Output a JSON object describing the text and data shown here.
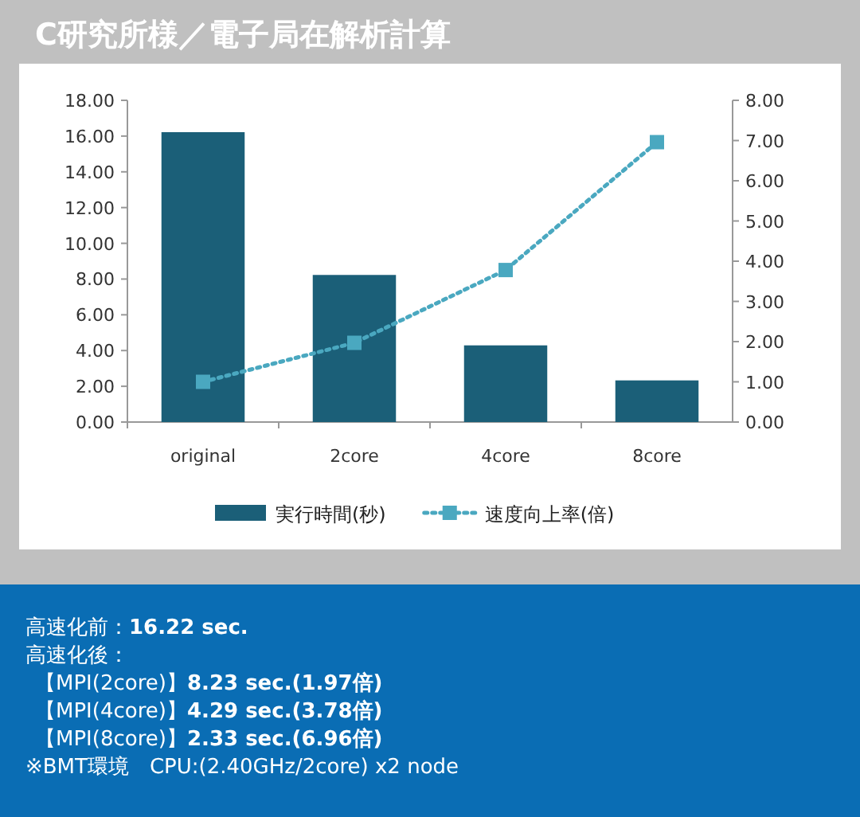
{
  "chart_data": {
    "type": "bar",
    "title": "C研究所様／電子局在解析計算",
    "categories": [
      "original",
      "2core",
      "4core",
      "8core"
    ],
    "series": [
      {
        "name": "実行時間(秒)",
        "color": "#1b5f78",
        "values": [
          16.22,
          8.23,
          4.29,
          2.33
        ]
      },
      {
        "name": "速度向上率(倍)",
        "type": "line",
        "axis": "y2",
        "color": "#4aa8c0",
        "marker": "square",
        "line_style": "dotted",
        "values": [
          1.0,
          1.97,
          3.78,
          6.96
        ]
      }
    ],
    "ylim": [
      0,
      18
    ],
    "yticks": [
      {
        "value": 0,
        "label": "0.00"
      },
      {
        "value": 2,
        "label": "2.00"
      },
      {
        "value": 4,
        "label": "4.00"
      },
      {
        "value": 6,
        "label": "6.00"
      },
      {
        "value": 8,
        "label": "8.00"
      },
      {
        "value": 10,
        "label": "10.00"
      },
      {
        "value": 12,
        "label": "12.00"
      },
      {
        "value": 14,
        "label": "14.00"
      },
      {
        "value": 16,
        "label": "16.00"
      },
      {
        "value": 18,
        "label": "18.00"
      }
    ],
    "y2lim": [
      0,
      8
    ],
    "y2ticks": [
      {
        "value": 0,
        "label": "0.00"
      },
      {
        "value": 1,
        "label": "1.00"
      },
      {
        "value": 2,
        "label": "2.00"
      },
      {
        "value": 3,
        "label": "3.00"
      },
      {
        "value": 4,
        "label": "4.00"
      },
      {
        "value": 5,
        "label": "5.00"
      },
      {
        "value": 6,
        "label": "6.00"
      },
      {
        "value": 7,
        "label": "7.00"
      },
      {
        "value": 8,
        "label": "8.00"
      }
    ],
    "legend": "bottom",
    "annotations": [
      "高速化前：**16.22 sec.**",
      "高速化後：",
      "【MPI(2core)】**8.23 sec.(1.97倍)**",
      "【MPI(4core)】**4.29 sec.(3.78倍)**",
      "【MPI(8core)】**2.33 sec.(6.96倍)**",
      "※BMT環境　CPU:(2.40GHz/2core) x2 node"
    ]
  }
}
